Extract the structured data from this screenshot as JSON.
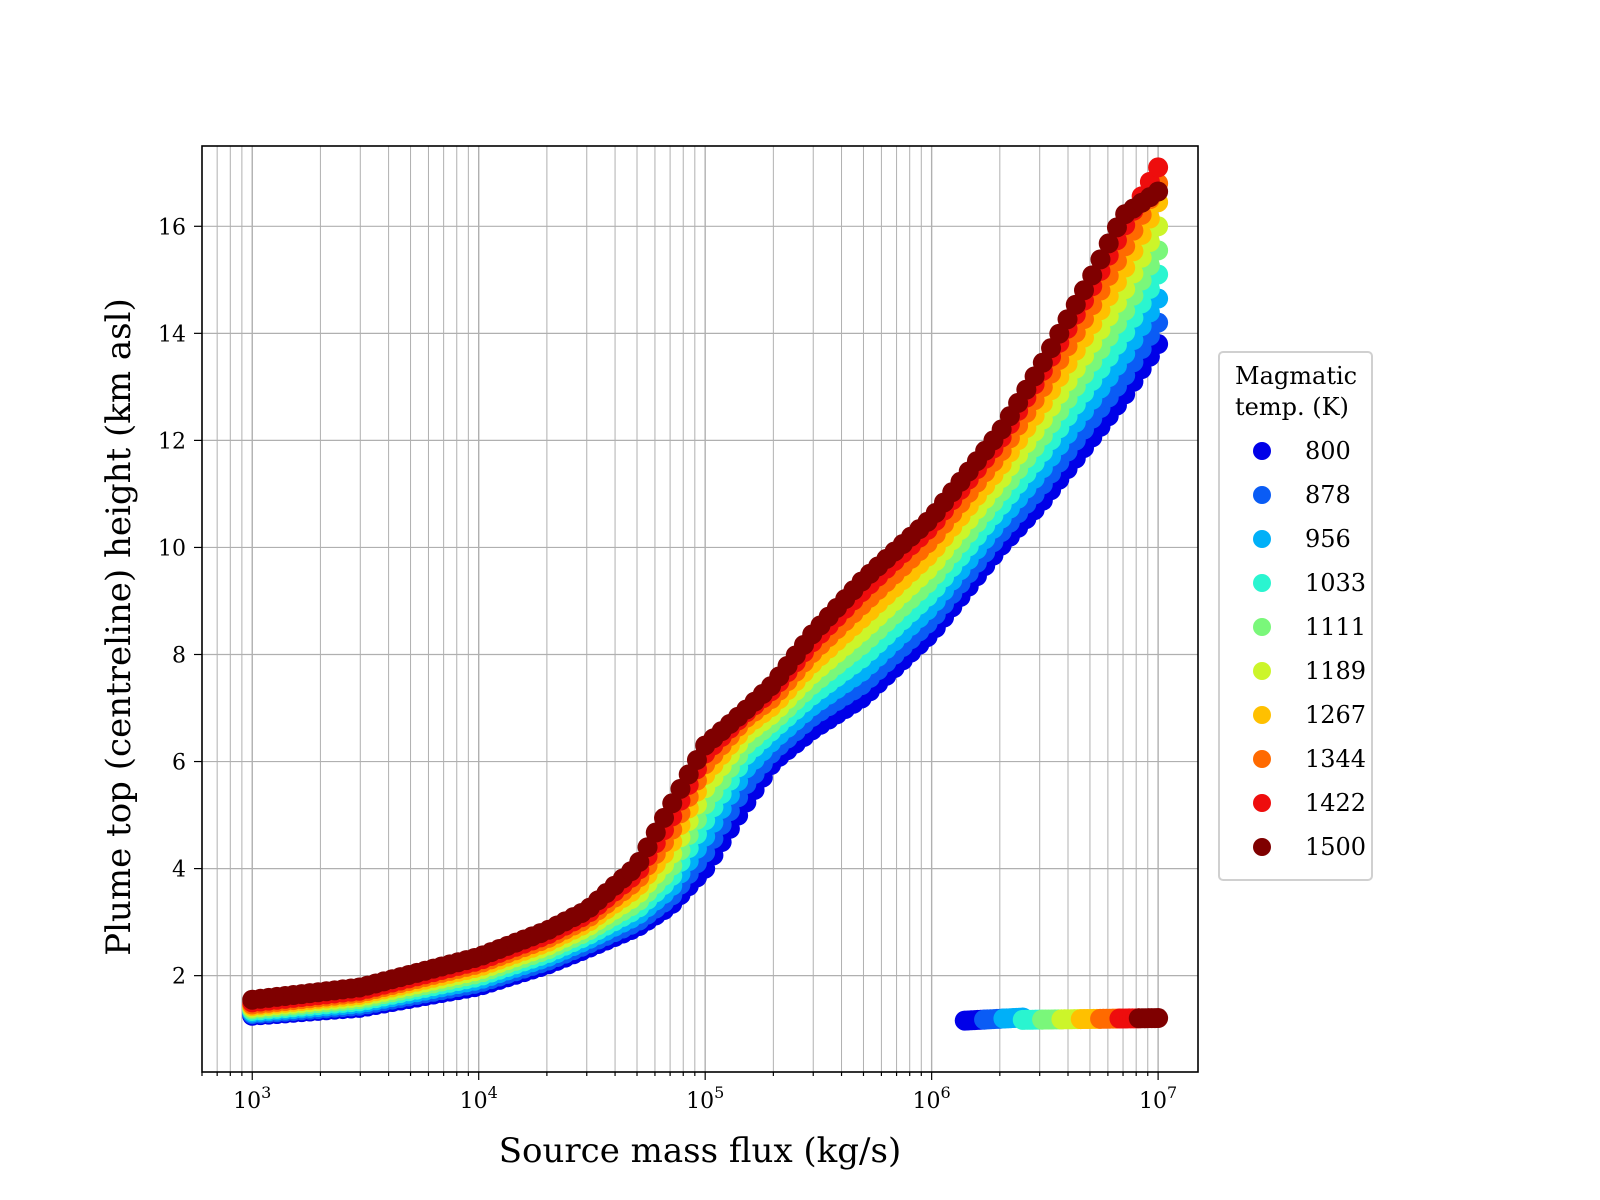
{
  "chart_data": {
    "type": "scatter",
    "xlabel": "Source mass flux (kg/s)",
    "ylabel": "Plume top (centreline) height (km asl)",
    "xscale": "log",
    "xlim": [
      600,
      15000000
    ],
    "ylim": [
      0.2,
      17.5
    ],
    "x_ticks": [
      1000,
      10000,
      100000,
      1000000,
      10000000
    ],
    "x_tick_labels": [
      {
        "base": "10",
        "exp": "3"
      },
      {
        "base": "10",
        "exp": "4"
      },
      {
        "base": "10",
        "exp": "5"
      },
      {
        "base": "10",
        "exp": "6"
      },
      {
        "base": "10",
        "exp": "7"
      }
    ],
    "y_ticks": [
      2,
      4,
      6,
      8,
      10,
      12,
      14,
      16
    ],
    "grid": true,
    "legend": {
      "title": "Magmatic\ntemp. (K)",
      "placement": "outside right",
      "entries": [
        {
          "label": "800",
          "color": "#0000e8"
        },
        {
          "label": "878",
          "color": "#0a5cf5"
        },
        {
          "label": "956",
          "color": "#00b0f8"
        },
        {
          "label": "1033",
          "color": "#2af5d0"
        },
        {
          "label": "1111",
          "color": "#7af77a"
        },
        {
          "label": "1189",
          "color": "#ccf52a"
        },
        {
          "label": "1267",
          "color": "#ffc000"
        },
        {
          "label": "1344",
          "color": "#ff6a00"
        },
        {
          "label": "1422",
          "color": "#ee0d0d"
        },
        {
          "label": "1500",
          "color": "#7f0000"
        }
      ]
    },
    "series": [
      {
        "name": "800",
        "color": "#0000e8",
        "x": [
          1000,
          3000,
          10000,
          20000,
          30000,
          50000,
          70000,
          100000,
          150000,
          200000,
          300000,
          500000,
          1000000,
          2000000,
          3000000,
          5000000,
          7000000,
          10000000
        ],
        "y": [
          1.25,
          1.4,
          1.8,
          2.2,
          2.5,
          2.9,
          3.3,
          4.0,
          5.2,
          6.0,
          6.6,
          7.2,
          8.4,
          10.0,
          10.8,
          12.0,
          12.8,
          13.8
        ]
      },
      {
        "name": "878",
        "color": "#0a5cf5",
        "x": [
          1000,
          3000,
          10000,
          20000,
          30000,
          50000,
          70000,
          100000,
          150000,
          200000,
          300000,
          500000,
          1000000,
          2000000,
          3000000,
          5000000,
          7000000,
          10000000
        ],
        "y": [
          1.28,
          1.44,
          1.86,
          2.27,
          2.58,
          3.0,
          3.45,
          4.3,
          5.55,
          6.2,
          6.85,
          7.45,
          8.65,
          10.25,
          11.1,
          12.35,
          13.15,
          14.2
        ]
      },
      {
        "name": "956",
        "color": "#00b0f8",
        "x": [
          1000,
          3000,
          10000,
          20000,
          30000,
          50000,
          70000,
          100000,
          150000,
          200000,
          300000,
          500000,
          1000000,
          2000000,
          3000000,
          5000000,
          7000000,
          10000000
        ],
        "y": [
          1.31,
          1.48,
          1.92,
          2.34,
          2.66,
          3.12,
          3.62,
          4.6,
          5.85,
          6.4,
          7.05,
          7.7,
          8.9,
          10.5,
          11.4,
          12.7,
          13.55,
          14.65
        ]
      },
      {
        "name": "1033",
        "color": "#2af5d0",
        "x": [
          1000,
          3000,
          10000,
          20000,
          30000,
          50000,
          70000,
          100000,
          150000,
          200000,
          300000,
          500000,
          1000000,
          2000000,
          3000000,
          5000000,
          7000000,
          10000000
        ],
        "y": [
          1.34,
          1.52,
          1.98,
          2.41,
          2.74,
          3.24,
          3.8,
          4.9,
          6.1,
          6.6,
          7.25,
          7.95,
          9.15,
          10.75,
          11.7,
          13.05,
          13.95,
          15.1
        ]
      },
      {
        "name": "1111",
        "color": "#7af77a",
        "x": [
          1000,
          3000,
          10000,
          20000,
          30000,
          50000,
          70000,
          100000,
          150000,
          200000,
          300000,
          500000,
          1000000,
          2000000,
          3000000,
          5000000,
          7000000,
          10000000
        ],
        "y": [
          1.37,
          1.56,
          2.04,
          2.48,
          2.82,
          3.36,
          3.98,
          5.2,
          6.3,
          6.75,
          7.45,
          8.2,
          9.4,
          11.0,
          12.0,
          13.4,
          14.35,
          15.55
        ]
      },
      {
        "name": "1189",
        "color": "#ccf52a",
        "x": [
          1000,
          3000,
          10000,
          20000,
          30000,
          50000,
          70000,
          100000,
          150000,
          200000,
          300000,
          500000,
          1000000,
          2000000,
          3000000,
          5000000,
          7000000,
          10000000
        ],
        "y": [
          1.4,
          1.6,
          2.1,
          2.55,
          2.9,
          3.5,
          4.2,
          5.5,
          6.5,
          6.9,
          7.65,
          8.45,
          9.65,
          11.25,
          12.3,
          13.75,
          14.75,
          16.0
        ]
      },
      {
        "name": "1267",
        "color": "#ffc000",
        "x": [
          1000,
          3000,
          10000,
          20000,
          30000,
          50000,
          70000,
          100000,
          150000,
          200000,
          300000,
          500000,
          1000000,
          2000000,
          3000000,
          5000000,
          7000000,
          10000000
        ],
        "y": [
          1.43,
          1.64,
          2.16,
          2.62,
          2.98,
          3.64,
          4.42,
          5.75,
          6.65,
          7.05,
          7.85,
          8.7,
          9.9,
          11.5,
          12.6,
          14.1,
          15.15,
          16.45
        ]
      },
      {
        "name": "1344",
        "color": "#ff6a00",
        "x": [
          1000,
          3000,
          10000,
          20000,
          30000,
          50000,
          70000,
          100000,
          150000,
          200000,
          300000,
          500000,
          1000000,
          2000000,
          3000000,
          5000000,
          7000000,
          10000000
        ],
        "y": [
          1.46,
          1.68,
          2.22,
          2.69,
          3.06,
          3.78,
          4.65,
          5.95,
          6.8,
          7.2,
          8.05,
          8.95,
          10.15,
          11.75,
          12.9,
          14.45,
          15.55,
          16.8
        ]
      },
      {
        "name": "1422",
        "color": "#ee0d0d",
        "x": [
          1000,
          3000,
          10000,
          20000,
          30000,
          50000,
          70000,
          100000,
          150000,
          200000,
          300000,
          500000,
          1000000,
          2000000,
          3000000,
          5000000,
          7000000,
          10000000
        ],
        "y": [
          1.5,
          1.72,
          2.28,
          2.76,
          3.14,
          3.92,
          4.9,
          6.15,
          6.9,
          7.35,
          8.25,
          9.2,
          10.4,
          12.0,
          13.2,
          14.8,
          15.95,
          17.1
        ]
      },
      {
        "name": "1500",
        "color": "#7f0000",
        "x": [
          1000,
          3000,
          10000,
          20000,
          30000,
          50000,
          70000,
          100000,
          150000,
          200000,
          300000,
          500000,
          1000000,
          2000000,
          3000000,
          5000000,
          7000000,
          10000000
        ],
        "y": [
          1.55,
          1.78,
          2.35,
          2.84,
          3.22,
          4.05,
          5.15,
          6.3,
          6.95,
          7.45,
          8.4,
          9.4,
          10.55,
          12.15,
          13.35,
          15.0,
          16.2,
          16.65
        ]
      }
    ],
    "outlier_band": {
      "x": [
        1400000,
        10000000
      ],
      "y": [
        1.1,
        1.5
      ]
    }
  }
}
